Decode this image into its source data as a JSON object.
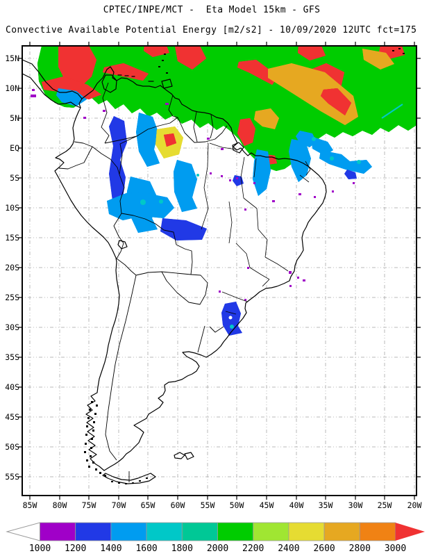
{
  "title": {
    "line1": "CPTEC/INPE/MCT -  Eta Model 15km - GFS",
    "line2": "Convective Available Potential Energy [m2/s2] - 10/09/2020 12UTC fct=175"
  },
  "axes": {
    "lat": [
      "15N",
      "10N",
      "5N",
      "EQ",
      "5S",
      "10S",
      "15S",
      "20S",
      "25S",
      "30S",
      "35S",
      "40S",
      "45S",
      "50S",
      "55S"
    ],
    "lon": [
      "85W",
      "80W",
      "75W",
      "70W",
      "65W",
      "60W",
      "55W",
      "50W",
      "45W",
      "40W",
      "35W",
      "30W",
      "25W",
      "20W"
    ]
  },
  "colorbar": {
    "values": [
      "1000",
      "1200",
      "1400",
      "1600",
      "1800",
      "2000",
      "2200",
      "2400",
      "2600",
      "2800",
      "3000"
    ],
    "colors": [
      "#A000C8",
      "#2139E6",
      "#009CF0",
      "#00C8C8",
      "#00C896",
      "#00CC00",
      "#A0E632",
      "#E6DC32",
      "#E6A821",
      "#F08214"
    ],
    "above_color": "#F03232",
    "below_color": "#FFFFFF",
    "outline_color": "#9a9a9a"
  },
  "chart_data": {
    "type": "heatmap",
    "subtype": "filled_contour_geographic_map",
    "title": "CPTEC/INPE/MCT -  Eta Model 15km - GFS",
    "subtitle": "Convective Available Potential Energy [m2/s2] - 10/09/2020 12UTC fct=175",
    "variable": "Convective Available Potential Energy",
    "units": "m2/s2",
    "center": "CPTEC/INPE/MCT",
    "model": "Eta Model 15km",
    "boundary_conditions": "GFS",
    "init_time": "10/09/2020 12UTC",
    "forecast": "fct=175",
    "contour_levels": [
      1000,
      1200,
      1400,
      1600,
      1800,
      2000,
      2200,
      2400,
      2600,
      2800,
      3000
    ],
    "palette": [
      "#A000C8",
      "#2139E6",
      "#009CF0",
      "#00C8C8",
      "#00C896",
      "#00CC00",
      "#A0E632",
      "#E6DC32",
      "#E6A821",
      "#F08214"
    ],
    "above_max_color": "#F03232",
    "below_min_color": "#FFFFFF",
    "lon_ticks": [
      "85W",
      "80W",
      "75W",
      "70W",
      "65W",
      "60W",
      "55W",
      "50W",
      "45W",
      "40W",
      "35W",
      "30W",
      "25W",
      "20W"
    ],
    "lat_ticks": [
      "15N",
      "10N",
      "5N",
      "EQ",
      "5S",
      "10S",
      "15S",
      "20S",
      "25S",
      "30S",
      "35S",
      "40S",
      "45S",
      "50S",
      "55S"
    ],
    "grid": "dotted 5-degree graticule",
    "legend_position": "bottom horizontal colorbar with out-of-range arrows",
    "features": [
      "Large CAPE field (1800-3000+ m2/s2) covering the Caribbean, northern Venezuela/Colombia and the tropical North Atlantic between ~17N and the equator",
      "Red streaks (>3000 m2/s2) near 15N over the eastern Pacific, the Venezuelan coast, ~48W 3N near Amapa and along 55-35W near 12-15N",
      "White minima embedded in the field near 52W 12N and near 27W 10N",
      "Scattered 1000-1800 m2/s2 cells over eastern Colombia, southern Venezuela and the northwestern Amazon down to ~7S",
      "Isolated 1000-1600 m2/s2 patch over the southern Amazon near 10S 60W",
      "Small 1000-1600 m2/s2 patch over southern Brazil near 28-30S 51W",
      "No CAPE (white) over the Andes, central/southern Brazil interior, Argentina and the South Atlantic"
    ]
  }
}
